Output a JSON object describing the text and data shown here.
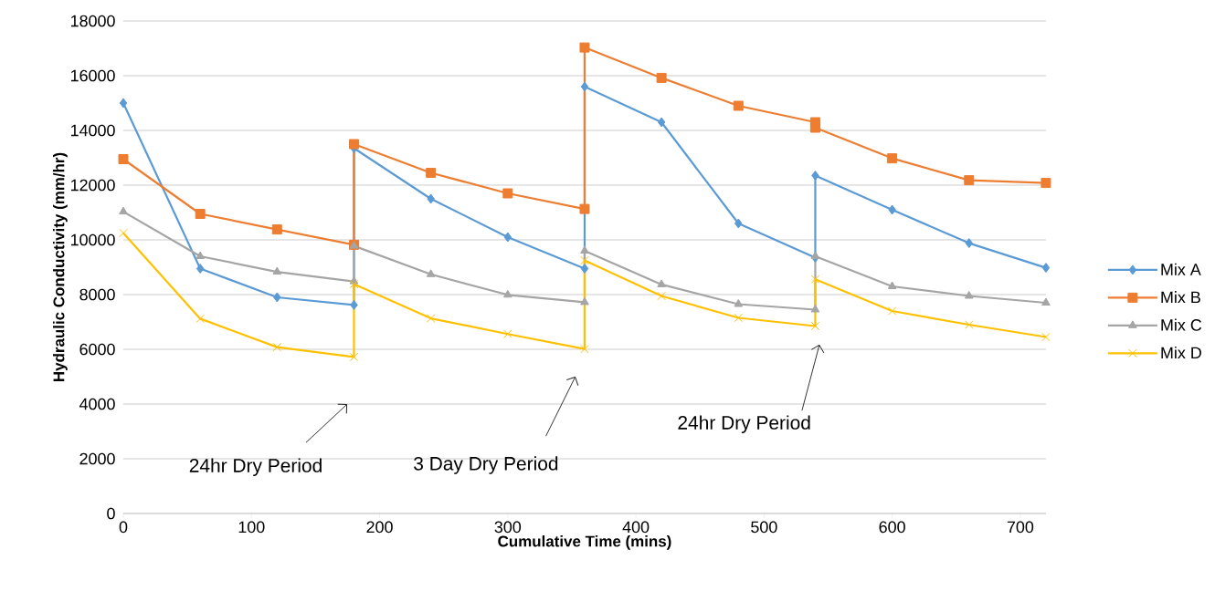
{
  "chart_data": {
    "type": "line",
    "xlabel": "Cumulative Time (mins)",
    "ylabel": "Hydraulic Conductivity (mm/hr)",
    "x": [
      0,
      60,
      120,
      180,
      180,
      240,
      300,
      360,
      360,
      420,
      480,
      540,
      540,
      600,
      660,
      720
    ],
    "series": [
      {
        "name": "Mix A",
        "color": "#5b9bd5",
        "marker": "diamond",
        "values": [
          15000,
          8950,
          7900,
          7620,
          13350,
          11500,
          10100,
          8950,
          15600,
          14300,
          10600,
          9350,
          12350,
          11100,
          9880,
          8980
        ]
      },
      {
        "name": "Mix B",
        "color": "#ed7d31",
        "marker": "square",
        "values": [
          12950,
          10950,
          10380,
          9820,
          13500,
          12450,
          11700,
          11130,
          17030,
          15920,
          14900,
          14300,
          14100,
          12980,
          12180,
          12080
        ]
      },
      {
        "name": "Mix C",
        "color": "#a5a5a5",
        "marker": "triangle",
        "values": [
          11030,
          9400,
          8830,
          8480,
          9780,
          8740,
          7990,
          7720,
          9600,
          8370,
          7650,
          7450,
          9400,
          8300,
          7950,
          7700
        ]
      },
      {
        "name": "Mix D",
        "color": "#ffc000",
        "marker": "cross",
        "values": [
          10250,
          7120,
          6080,
          5720,
          8380,
          7130,
          6560,
          6010,
          9250,
          7950,
          7150,
          6850,
          8560,
          7400,
          6900,
          6450
        ]
      }
    ],
    "xlim": [
      0,
      720
    ],
    "xticks": [
      0,
      100,
      200,
      300,
      400,
      500,
      600,
      700
    ],
    "ylim": [
      0,
      18000
    ],
    "yticks": [
      0,
      2000,
      4000,
      6000,
      8000,
      10000,
      12000,
      14000,
      16000,
      18000
    ],
    "grid": "y",
    "legend": "right",
    "line_style": "solid",
    "annotations": [
      "24hr Dry Period",
      "3 Day Dry Period",
      "24hr Dry Period"
    ]
  }
}
